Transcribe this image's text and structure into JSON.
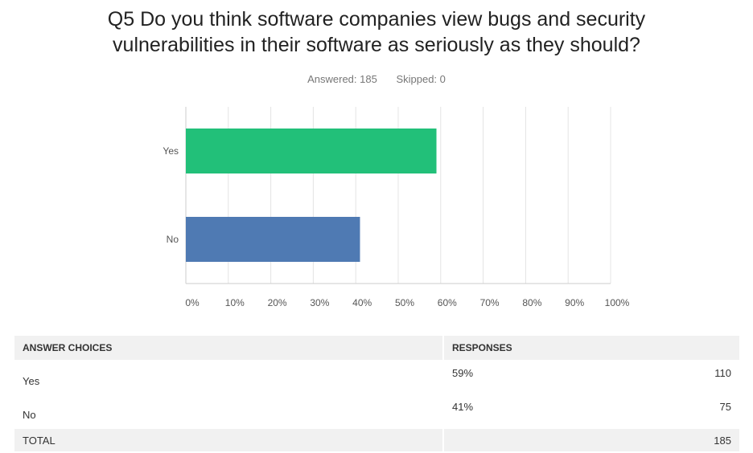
{
  "question": {
    "title_line1": "Q5 Do you think software companies view bugs and security",
    "title_line2": "vulnerabilities in their software as seriously as they should?",
    "answered": "Answered: 185",
    "skipped": "Skipped: 0"
  },
  "chart_data": {
    "type": "bar",
    "orientation": "horizontal",
    "categories": [
      "Yes",
      "No"
    ],
    "values": [
      59,
      41
    ],
    "value_unit": "percent",
    "xlim": [
      0,
      100
    ],
    "x_ticks": [
      "0%",
      "10%",
      "20%",
      "30%",
      "40%",
      "50%",
      "60%",
      "70%",
      "80%",
      "90%",
      "100%"
    ],
    "grid": true,
    "colors": [
      "#22c079",
      "#4f7ab3"
    ]
  },
  "table": {
    "headers": [
      "ANSWER CHOICES",
      "RESPONSES"
    ],
    "rows": [
      {
        "choice": "Yes",
        "percent": "59%",
        "count": "110"
      },
      {
        "choice": "No",
        "percent": "41%",
        "count": "75"
      }
    ],
    "total_label": "TOTAL",
    "total_count": "185"
  }
}
